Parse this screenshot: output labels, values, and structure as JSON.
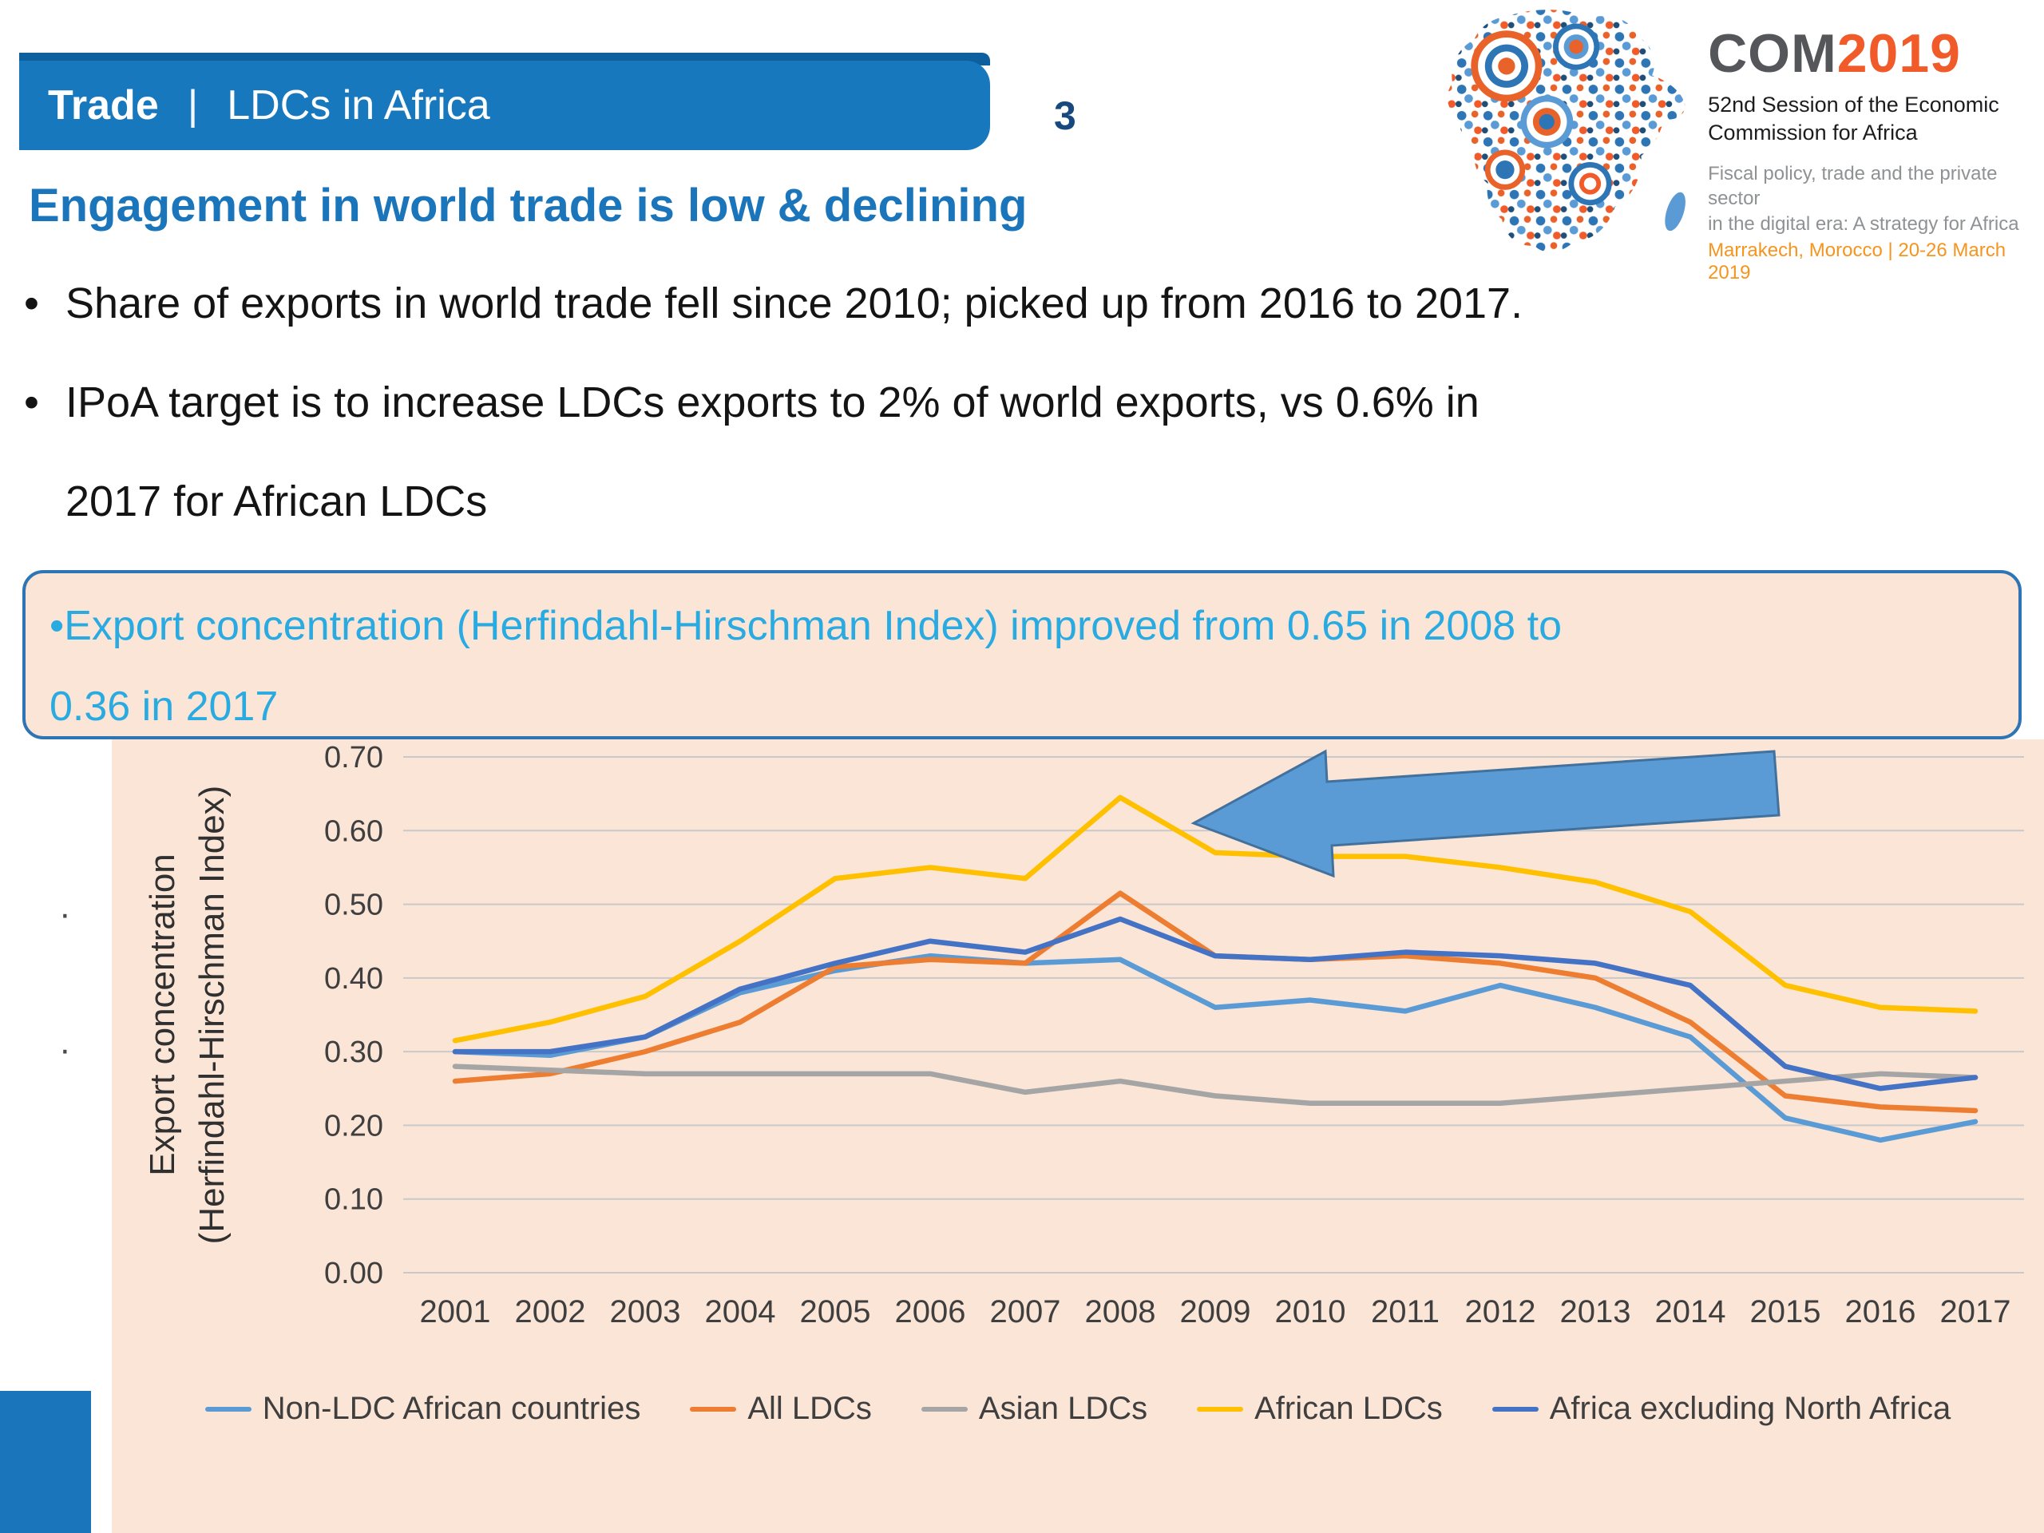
{
  "slide": {
    "header": {
      "title_bold": "Trade",
      "separator": "|",
      "title_rest": "LDCs in Africa",
      "page_number": "3"
    },
    "logo": {
      "brand_prefix": "COM",
      "brand_year": "2019",
      "session_line1": "52nd Session of the Economic",
      "session_line2": "Commission for Africa",
      "theme_line1": "Fiscal policy, trade and the private sector",
      "theme_line2": "in the digital era: A strategy for Africa",
      "venue_line": "Marrakech, Morocco | 20-26 March 2019"
    },
    "title": "Engagement in world trade is low & declining",
    "bullets": [
      {
        "lines": [
          "Share of exports in world trade fell since 2010; picked up from 2016 to 2017."
        ]
      },
      {
        "lines": [
          "IPoA target is to increase LDCs exports to 2% of world exports, vs 0.6% in",
          "2017 for African LDCs"
        ]
      }
    ],
    "callout": {
      "lines": [
        "•Export concentration (Herfindahl-Hirschman Index) improved from 0.65 in 2008 to",
        "0.36 in 2017"
      ]
    },
    "stray_marks": [
      "·",
      "·"
    ],
    "colors": {
      "banner": "#1878BE",
      "title": "#1B75BB",
      "callout_text": "#29ABE2",
      "callout_border": "#2E75B6",
      "panel_bg": "#FBE5D6",
      "brand_gray": "#55565A",
      "brand_orange": "#F15A29",
      "venue_orange": "#F7941D",
      "accent_square": "#1B75BB"
    }
  },
  "chart_data": {
    "type": "line",
    "title": "",
    "xlabel": "",
    "ylabel_lines": [
      "Export concentration",
      "(Herfindahl-Hirschman Index)"
    ],
    "ylim": [
      0,
      0.7
    ],
    "ytick_step": 0.1,
    "ytick_labels": [
      "0.00",
      "0.10",
      "0.20",
      "0.30",
      "0.40",
      "0.50",
      "0.60",
      "0.70"
    ],
    "grid": "horizontal",
    "legend_position": "bottom",
    "background": "#FBE5D6",
    "x": [
      "2001",
      "2002",
      "2003",
      "2004",
      "2005",
      "2006",
      "2007",
      "2008",
      "2009",
      "2010",
      "2011",
      "2012",
      "2013",
      "2014",
      "2015",
      "2016",
      "2017"
    ],
    "series": [
      {
        "name": "Non-LDC African countries",
        "color": "#5B9BD5",
        "values": [
          0.3,
          0.295,
          0.32,
          0.38,
          0.41,
          0.43,
          0.42,
          0.425,
          0.36,
          0.37,
          0.355,
          0.39,
          0.36,
          0.32,
          0.21,
          0.18,
          0.205
        ]
      },
      {
        "name": "All LDCs",
        "color": "#ED7D31",
        "values": [
          0.26,
          0.27,
          0.3,
          0.34,
          0.415,
          0.425,
          0.42,
          0.515,
          0.43,
          0.425,
          0.43,
          0.42,
          0.4,
          0.34,
          0.24,
          0.225,
          0.22
        ]
      },
      {
        "name": "Asian LDCs",
        "color": "#A5A5A5",
        "values": [
          0.28,
          0.275,
          0.27,
          0.27,
          0.27,
          0.27,
          0.245,
          0.26,
          0.24,
          0.23,
          0.23,
          0.23,
          0.24,
          0.25,
          0.26,
          0.27,
          0.265
        ]
      },
      {
        "name": "African LDCs",
        "color": "#FFC000",
        "values": [
          0.315,
          0.34,
          0.375,
          0.45,
          0.535,
          0.55,
          0.535,
          0.645,
          0.57,
          0.565,
          0.565,
          0.55,
          0.53,
          0.49,
          0.39,
          0.36,
          0.355
        ]
      },
      {
        "name": "Africa excluding North Africa",
        "color": "#4472C4",
        "values": [
          0.3,
          0.3,
          0.32,
          0.385,
          0.42,
          0.45,
          0.435,
          0.48,
          0.43,
          0.425,
          0.435,
          0.43,
          0.42,
          0.39,
          0.28,
          0.25,
          0.265
        ]
      }
    ]
  }
}
